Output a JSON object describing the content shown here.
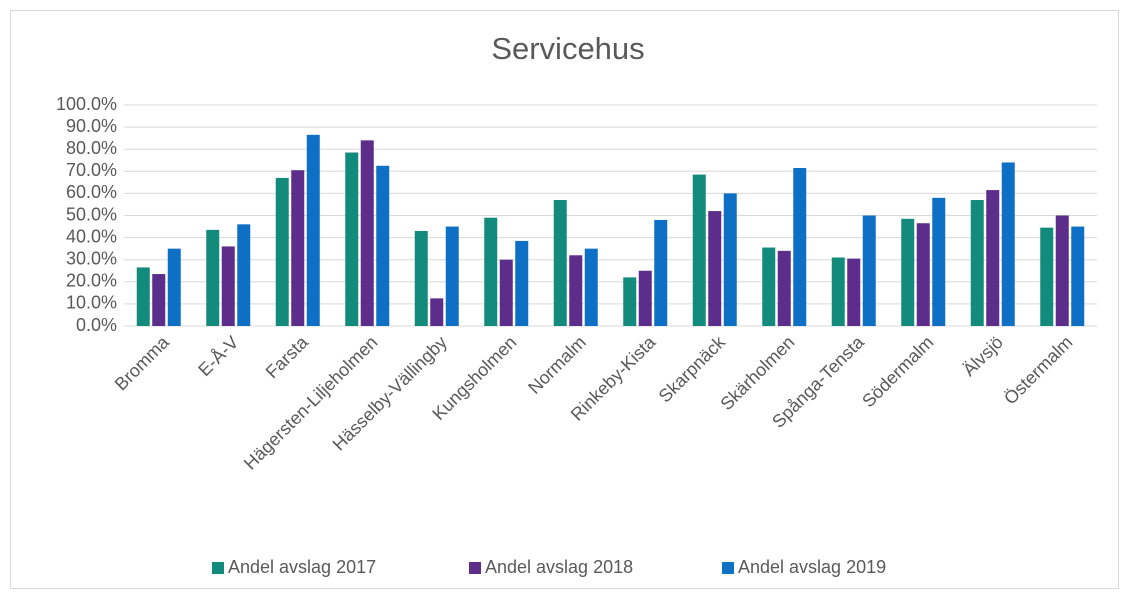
{
  "chart_data": {
    "type": "bar",
    "title": "Servicehus",
    "categories": [
      "Bromma",
      "E-Å-V",
      "Farsta",
      "Hägersten-Liljeholmen",
      "Hässelby-Vällingby",
      "Kungsholmen",
      "Normalm",
      "Rinkeby-Kista",
      "Skarpnäck",
      "Skärholmen",
      "Spånga-Tensta",
      "Södermalm",
      "Älvsjö",
      "Östermalm"
    ],
    "series": [
      {
        "name": "Andel avslag 2017",
        "color": "#138b7c",
        "values": [
          26.5,
          43.5,
          67,
          78.5,
          43,
          49,
          57,
          22,
          68.5,
          35.5,
          31,
          48.5,
          57,
          44.5
        ]
      },
      {
        "name": "Andel avslag 2018",
        "color": "#5c2d8a",
        "values": [
          23.5,
          36,
          70.5,
          84,
          12.5,
          30,
          32,
          25,
          52,
          34,
          30.5,
          46.5,
          61.5,
          50
        ]
      },
      {
        "name": "Andel avslag 2019",
        "color": "#0e70c4",
        "values": [
          35,
          46,
          86.5,
          72.5,
          45,
          38.5,
          35,
          48,
          60,
          71.5,
          50,
          58,
          74,
          45
        ]
      }
    ],
    "ylim": [
      0,
      100
    ],
    "yticks": [
      {
        "value": 0,
        "label": "0.0%"
      },
      {
        "value": 10,
        "label": "10.0%"
      },
      {
        "value": 20,
        "label": "20.0%"
      },
      {
        "value": 30,
        "label": "30.0%"
      },
      {
        "value": 40,
        "label": "40.0%"
      },
      {
        "value": 50,
        "label": "50.0%"
      },
      {
        "value": 60,
        "label": "60.0%"
      },
      {
        "value": 70,
        "label": "70.0%"
      },
      {
        "value": 80,
        "label": "80.0%"
      },
      {
        "value": 90,
        "label": "90.0%"
      },
      {
        "value": 100,
        "label": "100.0%"
      }
    ],
    "grid": true,
    "legend": "bottom"
  }
}
